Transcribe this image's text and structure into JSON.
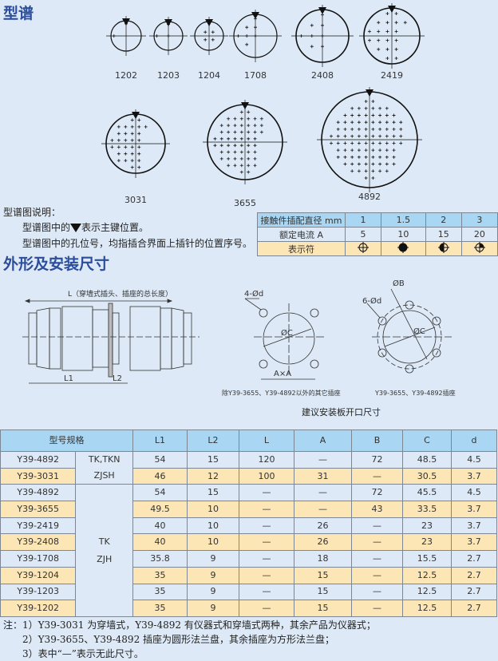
{
  "section1_title": "型谱",
  "connectors": [
    {
      "label": "1202",
      "pins": [
        "1",
        "2"
      ]
    },
    {
      "label": "1203",
      "pins": [
        "1",
        "2",
        "3"
      ]
    },
    {
      "label": "1204",
      "pins": [
        "1",
        "2",
        "3",
        "4"
      ]
    },
    {
      "label": "1708",
      "pins": [
        "1",
        "2",
        "3",
        "4",
        "5",
        "6",
        "7"
      ]
    },
    {
      "label": "2408",
      "pins": [
        "1",
        "2",
        "3",
        "4",
        "5",
        "6",
        "7",
        "8"
      ]
    },
    {
      "label": "2419",
      "pins": [
        "1",
        "3",
        "8",
        "12",
        "13",
        "16",
        "17",
        "19"
      ]
    },
    {
      "label": "3031"
    },
    {
      "label": "3655"
    },
    {
      "label": "4892"
    }
  ],
  "legend": {
    "heading": "型谱图说明：",
    "line1_pre": "型谱图中的",
    "line1_post": "表示主键位置。",
    "line2": "型谱图中的孔位号，均指插合界面上插针的位置序号。"
  },
  "spec_table": {
    "rows": [
      {
        "label": "接触件插配直径 mm",
        "values": [
          "1",
          "1.5",
          "2",
          "3"
        ]
      },
      {
        "label": "额定电流 A",
        "values": [
          "5",
          "10",
          "15",
          "20"
        ]
      },
      {
        "label": "表示符",
        "symbols": [
          "crosshair-open-icon",
          "filled-circle-icon",
          "half-filled-circle-icon",
          "quarter-filled-circle-icon"
        ]
      }
    ]
  },
  "section2_title": "外形及安装尺寸",
  "drawing": {
    "length_label": "L（穿墙式插头、插座的总长度）",
    "l1": "L1",
    "l2": "L2",
    "hole4": "4-Ød",
    "hole6": "6-Ød",
    "dia_c": "ØC",
    "dia_c2": "ØC",
    "dia_b": "ØB",
    "axa": "A×A",
    "caption_left": "除Y39-3655、Y39-4892以外的其它插座",
    "caption_right": "Y39-3655、Y39-4892插座",
    "caption_main": "建议安装板开口尺寸"
  },
  "main_table": {
    "headers": [
      "型号规格",
      "L1",
      "L2",
      "L",
      "A",
      "B",
      "C",
      "d"
    ],
    "groups": [
      [
        "TK,TKN",
        "ZJSH"
      ],
      [
        "TK",
        "ZJH"
      ]
    ],
    "rows": [
      [
        "Y39-4892",
        "54",
        "15",
        "120",
        "—",
        "72",
        "48.5",
        "4.5"
      ],
      [
        "Y39-3031",
        "46",
        "12",
        "100",
        "31",
        "—",
        "30.5",
        "3.7"
      ],
      [
        "Y39-4892",
        "54",
        "15",
        "—",
        "—",
        "72",
        "45.5",
        "4.5"
      ],
      [
        "Y39-3655",
        "49.5",
        "10",
        "—",
        "—",
        "43",
        "33.5",
        "3.7"
      ],
      [
        "Y39-2419",
        "40",
        "10",
        "—",
        "26",
        "—",
        "23",
        "3.7"
      ],
      [
        "Y39-2408",
        "40",
        "10",
        "—",
        "26",
        "—",
        "23",
        "3.7"
      ],
      [
        "Y39-1708",
        "35.8",
        "9",
        "—",
        "18",
        "—",
        "15.5",
        "2.7"
      ],
      [
        "Y39-1204",
        "35",
        "9",
        "—",
        "15",
        "—",
        "12.5",
        "2.7"
      ],
      [
        "Y39-1203",
        "35",
        "9",
        "—",
        "15",
        "—",
        "12.5",
        "2.7"
      ],
      [
        "Y39-1202",
        "35",
        "9",
        "—",
        "15",
        "—",
        "12.5",
        "2.7"
      ]
    ]
  },
  "notes": [
    "注：1）Y39-3031 为穿墙式，Y39-4892 有仪器式和穿墙式两种，其余产品为仪器式；",
    "2）Y39-3655、Y39-4892 插座为圆形法兰盘，其余插座为方形法兰盘；",
    "3）表中“—”表示无此尺寸。"
  ],
  "colors": {
    "title": "#2b4d9c",
    "header": "#a8d6f3",
    "row_blue": "#dde9f6",
    "row_yellow": "#fde6b6"
  }
}
